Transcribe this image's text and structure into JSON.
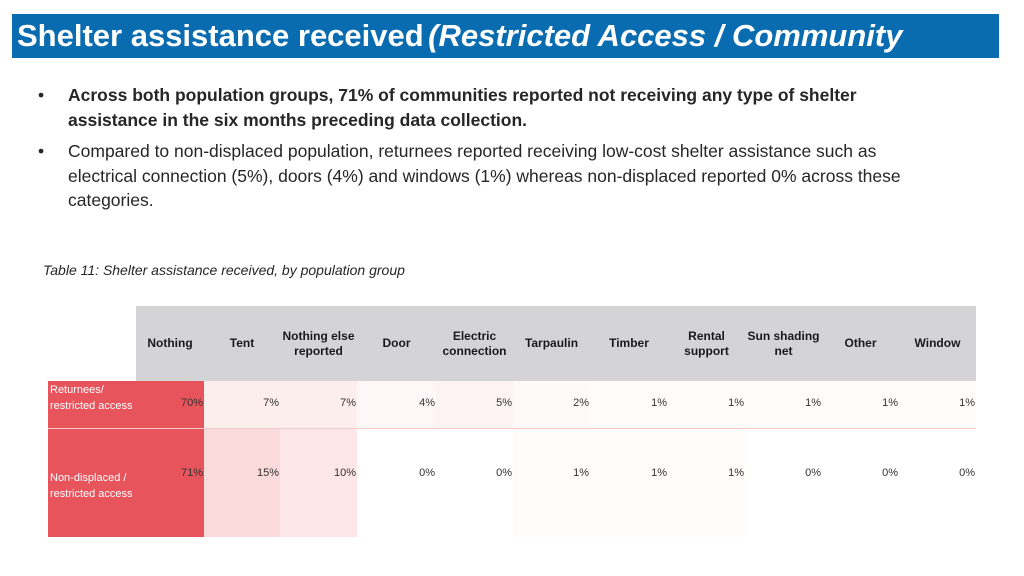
{
  "header": {
    "title": "Shelter assistance received",
    "title_italic": "(Restricted Access / Community"
  },
  "bullets": [
    {
      "text": "Across both population groups, 71% of communities reported not receiving any type of shelter assistance in the six months preceding data collection.",
      "bold": true
    },
    {
      "text": "Compared to non-displaced population, returnees reported receiving low-cost shelter assistance such as electrical connection (5%), doors (4%)  and windows (1%) whereas non-displaced reported 0% across these categories.",
      "bold": false
    }
  ],
  "bullet_symbol": "•",
  "table": {
    "caption": "Table 11: Shelter assistance received, by population group",
    "columns": [
      "Nothing",
      "Tent",
      "Nothing else reported",
      "Door",
      "Electric connection",
      "Tarpaulin",
      "Timber",
      "Rental support",
      "Sun shading net",
      "Other",
      "Window"
    ],
    "rows": [
      {
        "label": "Returnees/ restricted access",
        "values": [
          "70%",
          "7%",
          "7%",
          "4%",
          "5%",
          "2%",
          "1%",
          "1%",
          "1%",
          "1%",
          "1%"
        ],
        "shades": [
          "#e8545b",
          "#fdeeee",
          "#fdeeee",
          "#fff7f7",
          "#fef3f3",
          "#fffafa",
          "#fffbfb",
          "#fffbfb",
          "#fffbfb",
          "#fffbfb",
          "#fffbfb"
        ]
      },
      {
        "label": "Non-displaced / restricted access",
        "values": [
          "71%",
          "15%",
          "10%",
          "0%",
          "0%",
          "1%",
          "1%",
          "1%",
          "0%",
          "0%",
          "0%"
        ],
        "shades": [
          "#e8545b",
          "#fadadb",
          "#fce6e6",
          "#ffffff",
          "#ffffff",
          "#fffbfb",
          "#fffbfb",
          "#fffbfb",
          "#ffffff",
          "#ffffff",
          "#ffffff"
        ]
      }
    ],
    "colors": {
      "row_label_bg": "#e8545b",
      "header_bg": "#d4d4d7",
      "title_bar": "#0a6cb0"
    }
  }
}
